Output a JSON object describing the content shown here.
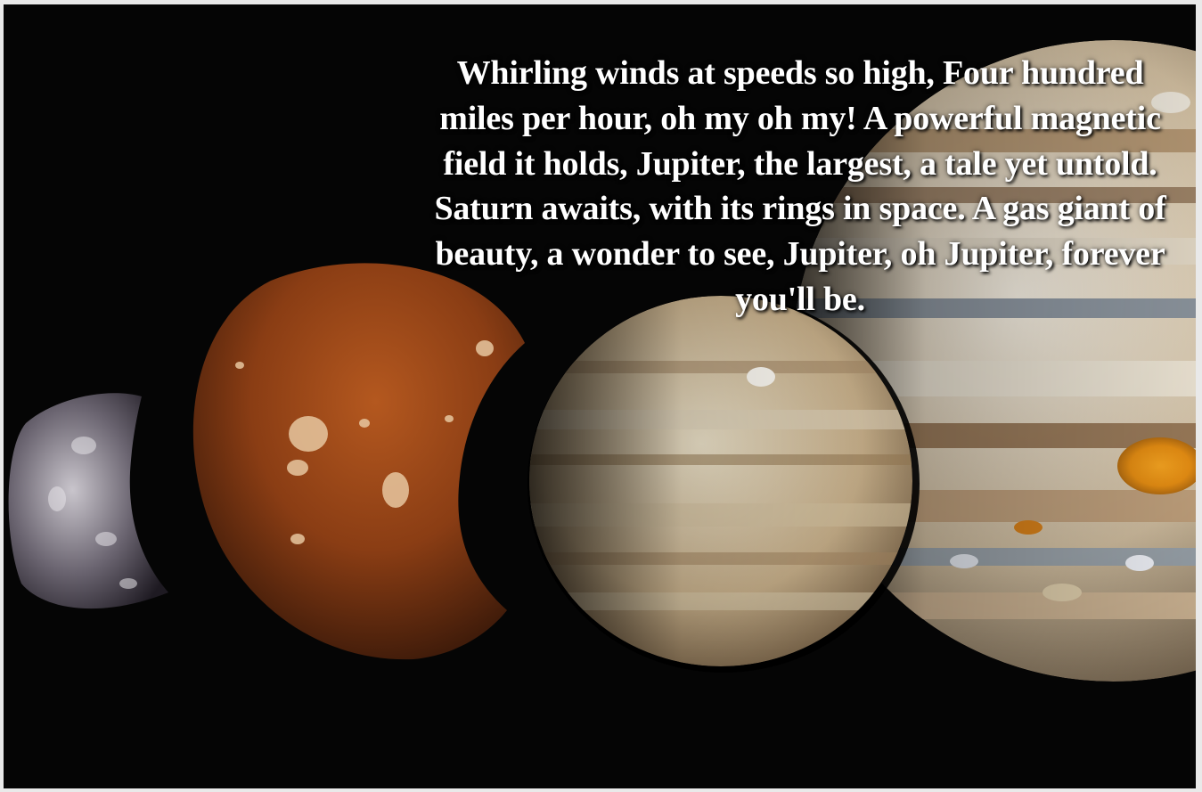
{
  "image": {
    "description_icons": [
      "moon-crescent",
      "mars-like-planet",
      "saturn-like-planet",
      "jupiter-planet"
    ],
    "colors": {
      "background": "#050505",
      "frame": "#e9e9e9",
      "text": "#ffffff",
      "jupiter_spot": "#e08a12"
    }
  },
  "poem": {
    "text": "Whirling winds at speeds so high, Four hundred miles per hour, oh my oh my! A powerful magnetic field it holds, Jupiter, the largest, a tale yet untold. Saturn awaits, with its rings in space. A gas giant of beauty, a wonder to see, Jupiter, oh Jupiter, forever you'll be."
  }
}
